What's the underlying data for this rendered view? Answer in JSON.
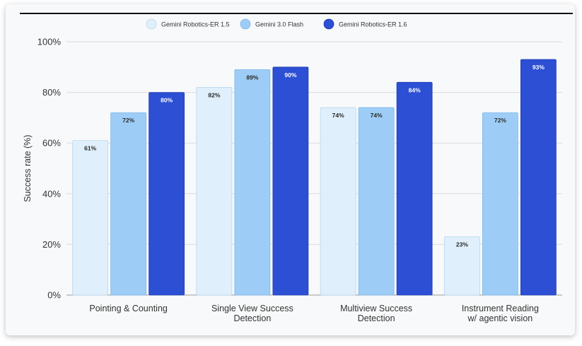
{
  "chart_data": {
    "type": "bar",
    "categories": [
      [
        "Pointing & Counting"
      ],
      [
        "Single View Success",
        "Detection"
      ],
      [
        "Multiview Success",
        "Detection"
      ],
      [
        "Instrument Reading",
        "w/ agentic vision"
      ]
    ],
    "series": [
      {
        "name": "Gemini Robotics-ER 1.5",
        "values": [
          61,
          82,
          74,
          23
        ],
        "labels": [
          "61%",
          "82%",
          "74%",
          "23%"
        ],
        "color": "#dfeffb",
        "stroke": "#b9d7ee"
      },
      {
        "name": "Gemini 3.0 Flash",
        "values": [
          72,
          89,
          74,
          72
        ],
        "labels": [
          "72%",
          "89%",
          "74%",
          "72%"
        ],
        "color": "#9dcdf7",
        "stroke": "#7fb7e8"
      },
      {
        "name": "Gemini Robotics-ER 1.6",
        "values": [
          80,
          90,
          84,
          93
        ],
        "labels": [
          "80%",
          "90%",
          "84%",
          "93%"
        ],
        "color": "#2c4fd4",
        "stroke": "#1f3cb5"
      }
    ],
    "ylabel": "Success rate (%)",
    "xlabel": "",
    "ylim": [
      0,
      100
    ],
    "yticks": [
      0,
      20,
      40,
      60,
      80,
      100
    ],
    "ytick_labels": [
      "0%",
      "20%",
      "40%",
      "60%",
      "80%",
      "100%"
    ],
    "grid": true,
    "legend": "top-center"
  }
}
